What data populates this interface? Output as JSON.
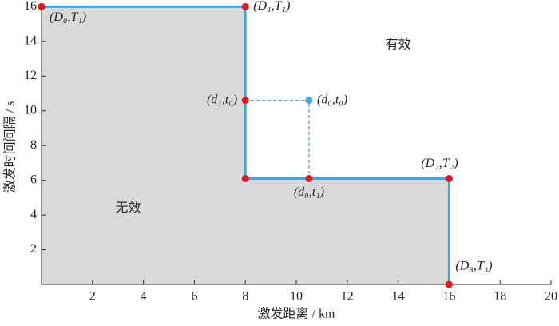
{
  "chart_data": {
    "type": "line",
    "xlabel": "激发距离 / km",
    "ylabel": "激发时间间隔 / s",
    "xlim": [
      0,
      20
    ],
    "xticks": [
      2,
      4,
      6,
      8,
      10,
      12,
      14,
      16,
      18,
      20
    ],
    "ylim": [
      0,
      16.2
    ],
    "yticks": [
      2,
      4,
      6,
      8,
      10,
      12,
      14,
      16
    ],
    "region_labels": [
      {
        "text": "有效",
        "x": 14,
        "y": 13.8
      },
      {
        "text": "无效",
        "x": 3.4,
        "y": 4.4
      }
    ],
    "region_fill": "#d9d9d9",
    "series": [
      {
        "x": [
          0,
          8,
          8,
          16,
          16
        ],
        "values": [
          16,
          16,
          6.1,
          6.1,
          0
        ],
        "color": "#3fa7e0",
        "style": "solid"
      },
      {
        "x": [
          8,
          10.5,
          10.5
        ],
        "values": [
          10.6,
          10.6,
          6.1
        ],
        "color": "#3fa7e0",
        "style": "dashed"
      }
    ],
    "points": {
      "x": [
        0,
        8,
        8,
        8,
        10.5,
        16,
        16,
        10.5
      ],
      "values": [
        16,
        16,
        10.6,
        6.1,
        6.1,
        6.1,
        0,
        10.6
      ],
      "labels": [
        "(D₀,T₁)",
        "(D₁,T₁)",
        "(d₁,t₀)",
        null,
        "(d₀,t₁)",
        "(D₂,T₂)",
        "(D₃,T₃)",
        "(d₀,t₀)"
      ],
      "colors": [
        "#e8141b",
        "#e8141b",
        "#e8141b",
        "#e8141b",
        "#e8141b",
        "#e8141b",
        "#e8141b",
        "#3fa7e0"
      ]
    }
  }
}
